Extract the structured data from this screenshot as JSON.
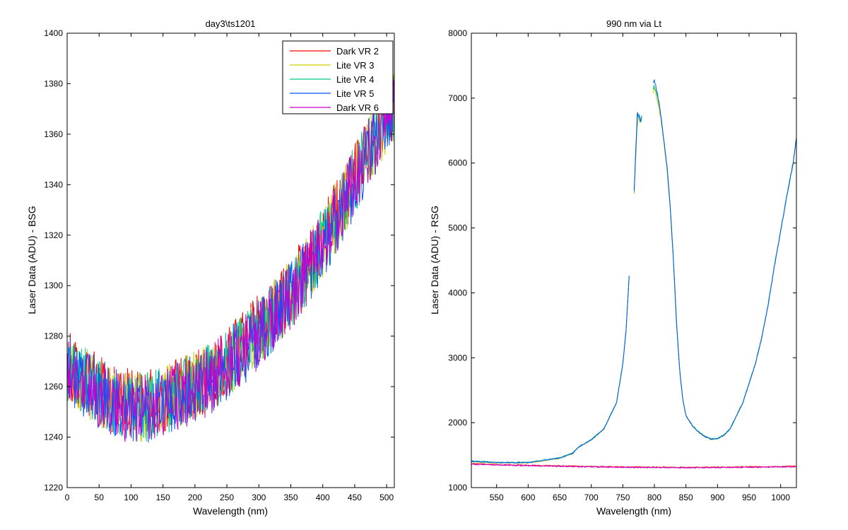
{
  "chart_data": [
    {
      "type": "line",
      "title": "day3\\ts1201",
      "xlabel": "Wavelength (nm)",
      "ylabel": "Laser Data (ADU) - BSG",
      "xlim": [
        0,
        512
      ],
      "ylim": [
        1220,
        1400
      ],
      "xticks": [
        0,
        50,
        100,
        150,
        200,
        250,
        300,
        350,
        400,
        450,
        500
      ],
      "yticks": [
        1220,
        1240,
        1260,
        1280,
        1300,
        1320,
        1340,
        1360,
        1380,
        1400
      ],
      "legend_position": "top-right",
      "noise": 14,
      "x": [
        0,
        25,
        50,
        75,
        100,
        125,
        150,
        175,
        200,
        225,
        250,
        275,
        300,
        325,
        350,
        375,
        400,
        425,
        450,
        475,
        500,
        512
      ],
      "series": [
        {
          "name": "Dark VR 2",
          "color": "#ff0000",
          "values": [
            1268,
            1264,
            1259,
            1255,
            1253,
            1253,
            1255,
            1258,
            1261,
            1265,
            1270,
            1276,
            1283,
            1290,
            1298,
            1307,
            1318,
            1330,
            1343,
            1356,
            1368,
            1372
          ]
        },
        {
          "name": "Lite VR 3",
          "color": "#cccc00",
          "values": [
            1267,
            1263,
            1258,
            1254,
            1252,
            1252,
            1254,
            1257,
            1260,
            1264,
            1269,
            1275,
            1282,
            1289,
            1297,
            1306,
            1317,
            1329,
            1342,
            1355,
            1367,
            1371
          ]
        },
        {
          "name": "Lite VR 4",
          "color": "#00cc88",
          "values": [
            1267,
            1263,
            1258,
            1254,
            1252,
            1252,
            1254,
            1257,
            1260,
            1264,
            1269,
            1275,
            1282,
            1289,
            1297,
            1306,
            1317,
            1329,
            1342,
            1355,
            1367,
            1371
          ]
        },
        {
          "name": "Lite VR 5",
          "color": "#0055ff",
          "values": [
            1266,
            1262,
            1257,
            1253,
            1251,
            1251,
            1253,
            1256,
            1259,
            1263,
            1268,
            1274,
            1281,
            1288,
            1296,
            1305,
            1316,
            1328,
            1341,
            1354,
            1366,
            1370
          ]
        },
        {
          "name": "Dark VR 6",
          "color": "#cc00cc",
          "values": [
            1266,
            1262,
            1257,
            1253,
            1251,
            1251,
            1253,
            1256,
            1259,
            1263,
            1268,
            1274,
            1281,
            1288,
            1296,
            1305,
            1316,
            1328,
            1341,
            1354,
            1366,
            1370
          ]
        }
      ]
    },
    {
      "type": "line",
      "title": "990 nm via Lt",
      "xlabel": "Wavelength (nm)",
      "ylabel": "Laser Data (ADU) - RSG",
      "xlim": [
        510,
        1025
      ],
      "ylim": [
        1000,
        8000
      ],
      "xticks": [
        550,
        600,
        650,
        700,
        750,
        800,
        850,
        900,
        950,
        1000
      ],
      "yticks": [
        1000,
        2000,
        3000,
        4000,
        5000,
        6000,
        7000,
        8000
      ],
      "noise": 10,
      "series": [
        {
          "name": "Lite VR 3",
          "color": "#cccc00",
          "segments": [
            {
              "x": [
                510,
                550,
                600,
                650,
                670,
                680,
                700,
                720,
                740,
                750,
                755,
                760
              ],
              "y": [
                1400,
                1380,
                1380,
                1450,
                1520,
                1620,
                1730,
                1900,
                2300,
                2900,
                3400,
                4250
              ]
            },
            {
              "x": [
                768,
                770,
                773,
                776,
                778,
                780
              ],
              "y": [
                5550,
                6000,
                6600,
                6700,
                6650,
                6700
              ]
            },
            {
              "x": [
                798,
                800,
                805,
                810,
                815,
                820,
                825,
                830,
                835,
                840,
                845,
                850,
                860,
                870,
                880,
                890,
                900,
                910,
                920,
                930,
                940,
                950,
                960,
                970,
                980,
                990,
                1000,
                1010,
                1020,
                1025
              ],
              "y": [
                7100,
                7150,
                6950,
                6700,
                6300,
                5900,
                5300,
                4500,
                3500,
                2800,
                2350,
                2100,
                1950,
                1850,
                1780,
                1740,
                1750,
                1800,
                1900,
                2100,
                2300,
                2600,
                2900,
                3300,
                3800,
                4400,
                4950,
                5500,
                6000,
                6400
              ]
            }
          ]
        },
        {
          "name": "Lite VR 4",
          "color": "#00cc88",
          "segments": [
            {
              "x": [
                510,
                550,
                600,
                650,
                670,
                680,
                700,
                720,
                740,
                750,
                755,
                760
              ],
              "y": [
                1410,
                1390,
                1390,
                1460,
                1530,
                1630,
                1740,
                1910,
                2310,
                2910,
                3420,
                4270
              ]
            },
            {
              "x": [
                768,
                770,
                773,
                776,
                778,
                780
              ],
              "y": [
                5560,
                6050,
                6700,
                6750,
                6600,
                6720
              ]
            },
            {
              "x": [
                798,
                800,
                805,
                810,
                815,
                820,
                825,
                830,
                835,
                840,
                845,
                850,
                860,
                870,
                880,
                890,
                900,
                910,
                920,
                930,
                940,
                950,
                960,
                970,
                980,
                990,
                1000,
                1010,
                1020,
                1025
              ],
              "y": [
                7150,
                7200,
                7000,
                6750,
                6350,
                5950,
                5350,
                4550,
                3550,
                2820,
                2360,
                2110,
                1960,
                1860,
                1790,
                1750,
                1760,
                1810,
                1910,
                2110,
                2310,
                2610,
                2910,
                3310,
                3810,
                4410,
                4960,
                5510,
                6010,
                6410
              ]
            }
          ]
        },
        {
          "name": "Lite VR 5",
          "color": "#0055ff",
          "segments": [
            {
              "x": [
                510,
                550,
                600,
                650,
                670,
                680,
                700,
                720,
                740,
                750,
                755,
                760
              ],
              "y": [
                1405,
                1385,
                1385,
                1455,
                1525,
                1625,
                1735,
                1905,
                2305,
                2905,
                3410,
                4260
              ]
            },
            {
              "x": [
                768,
                770,
                773,
                776,
                778,
                780
              ],
              "y": [
                5560,
                6100,
                6780,
                6700,
                6650,
                6720
              ]
            },
            {
              "x": [
                798,
                800,
                805,
                810,
                815,
                820,
                825,
                830,
                835,
                840,
                845,
                850,
                860,
                870,
                880,
                890,
                900,
                910,
                920,
                930,
                940,
                950,
                960,
                970,
                980,
                990,
                1000,
                1010,
                1020,
                1025
              ],
              "y": [
                7250,
                7280,
                7050,
                6750,
                6350,
                5950,
                5350,
                4550,
                3550,
                2810,
                2355,
                2105,
                1955,
                1855,
                1785,
                1745,
                1755,
                1805,
                1905,
                2105,
                2305,
                2605,
                2905,
                3305,
                3805,
                4405,
                4955,
                5505,
                6005,
                6405
              ]
            }
          ]
        },
        {
          "name": "Dark VR 2",
          "color": "#ff0000",
          "segments": [
            {
              "x": [
                510,
                550,
                600,
                650,
                700,
                750,
                800,
                850,
                900,
                950,
                1000,
                1025
              ],
              "y": [
                1370,
                1355,
                1345,
                1335,
                1325,
                1318,
                1315,
                1312,
                1315,
                1320,
                1325,
                1330
              ]
            }
          ]
        },
        {
          "name": "Dark VR 6",
          "color": "#cc00cc",
          "segments": [
            {
              "x": [
                510,
                550,
                600,
                650,
                700,
                750,
                800,
                850,
                900,
                950,
                1000,
                1025
              ],
              "y": [
                1360,
                1348,
                1338,
                1328,
                1318,
                1312,
                1308,
                1306,
                1308,
                1312,
                1318,
                1322
              ]
            }
          ]
        }
      ]
    }
  ]
}
